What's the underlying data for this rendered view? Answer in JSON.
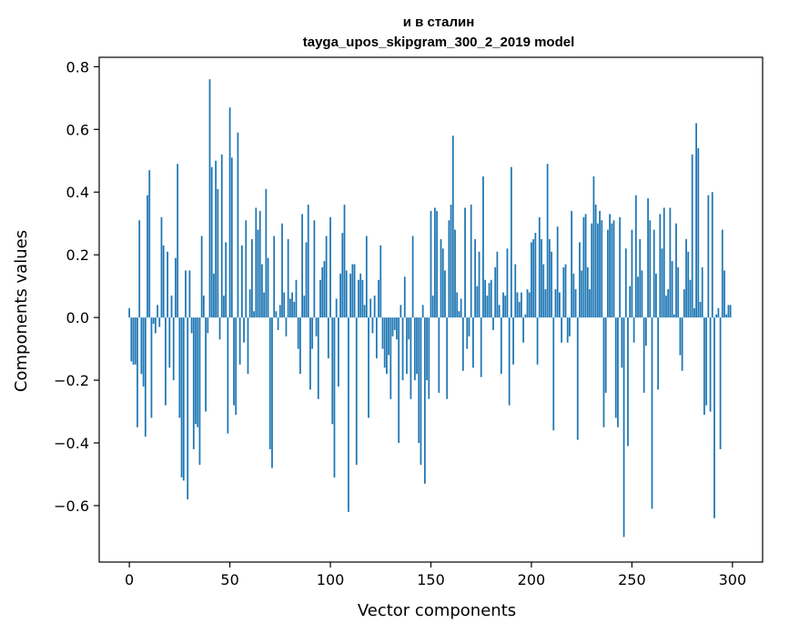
{
  "chart_data": {
    "type": "bar",
    "title": "и в сталин",
    "subtitle": "tayga_upos_skipgram_300_2_2019 model",
    "xlabel": "Vector components",
    "ylabel": "Components values",
    "xlim": [
      -15,
      315
    ],
    "ylim": [
      -0.78,
      0.83
    ],
    "x_ticks": [
      0,
      50,
      100,
      150,
      200,
      250,
      300
    ],
    "x_tick_labels": [
      "0",
      "50",
      "100",
      "150",
      "200",
      "250",
      "300"
    ],
    "y_ticks": [
      -0.6,
      -0.4,
      -0.2,
      0.0,
      0.2,
      0.4,
      0.6,
      0.8
    ],
    "y_tick_labels": [
      "−0.6",
      "−0.4",
      "−0.2",
      "0.0",
      "0.2",
      "0.4",
      "0.6",
      "0.8"
    ],
    "bar_color": "#1f77b4",
    "grid": false,
    "x": "0..299",
    "values": [
      0.03,
      -0.14,
      -0.15,
      -0.15,
      -0.35,
      0.31,
      -0.18,
      -0.22,
      -0.38,
      0.39,
      0.47,
      -0.32,
      -0.02,
      -0.05,
      0.04,
      -0.03,
      0.32,
      0.23,
      -0.28,
      0.21,
      -0.16,
      0.07,
      -0.2,
      0.19,
      0.49,
      -0.32,
      -0.51,
      -0.52,
      0.15,
      -0.58,
      0.15,
      -0.05,
      -0.42,
      -0.34,
      -0.35,
      -0.47,
      0.26,
      0.07,
      -0.3,
      -0.05,
      0.76,
      0.48,
      0.14,
      0.5,
      0.41,
      -0.07,
      0.52,
      0.07,
      0.24,
      -0.37,
      0.67,
      0.51,
      -0.28,
      -0.31,
      0.59,
      -0.15,
      0.23,
      -0.08,
      0.31,
      -0.18,
      0.09,
      0.25,
      0.02,
      0.35,
      0.28,
      0.34,
      0.17,
      0.08,
      0.41,
      0.19,
      -0.42,
      -0.48,
      0.26,
      0.02,
      -0.04,
      0.04,
      0.3,
      0.08,
      -0.06,
      0.25,
      0.06,
      0.08,
      0.05,
      0.12,
      -0.1,
      -0.18,
      0.33,
      0.07,
      0.24,
      0.36,
      -0.23,
      -0.1,
      0.31,
      -0.06,
      -0.26,
      0.12,
      0.16,
      0.18,
      0.26,
      -0.13,
      0.32,
      -0.34,
      -0.51,
      0.06,
      -0.22,
      0.14,
      0.27,
      0.36,
      0.15,
      -0.62,
      0.14,
      0.17,
      0.17,
      -0.47,
      0.12,
      0.14,
      0.12,
      0.04,
      0.26,
      -0.32,
      0.06,
      -0.05,
      0.07,
      -0.13,
      0.12,
      0.23,
      -0.1,
      -0.16,
      -0.18,
      -0.12,
      -0.26,
      -0.06,
      -0.04,
      -0.07,
      -0.4,
      0.04,
      -0.2,
      0.13,
      -0.18,
      -0.07,
      -0.26,
      0.26,
      -0.2,
      -0.18,
      -0.4,
      -0.47,
      0.04,
      -0.53,
      -0.2,
      -0.26,
      0.34,
      0.07,
      0.35,
      0.34,
      -0.24,
      0.25,
      0.22,
      0.15,
      -0.26,
      0.31,
      0.36,
      0.58,
      0.28,
      0.08,
      0.02,
      0.06,
      -0.17,
      0.35,
      -0.1,
      -0.06,
      0.36,
      -0.16,
      0.25,
      0.1,
      0.21,
      -0.19,
      0.45,
      0.12,
      0.07,
      0.11,
      0.12,
      -0.04,
      0.16,
      0.21,
      0.04,
      -0.18,
      0.08,
      0.07,
      0.22,
      -0.28,
      0.48,
      -0.15,
      0.17,
      0.08,
      0.05,
      0.08,
      -0.08,
      0.01,
      0.09,
      0.08,
      0.24,
      0.25,
      0.27,
      -0.15,
      0.32,
      0.25,
      0.17,
      0.09,
      0.49,
      0.25,
      0.21,
      -0.36,
      0.09,
      0.29,
      0.08,
      -0.08,
      0.16,
      0.17,
      -0.08,
      -0.06,
      0.34,
      0.14,
      0.09,
      -0.39,
      0.24,
      0.15,
      0.32,
      0.33,
      0.16,
      0.09,
      0.3,
      0.45,
      0.36,
      0.3,
      0.34,
      0.31,
      -0.35,
      -0.24,
      0.28,
      0.33,
      0.3,
      0.31,
      -0.32,
      -0.35,
      0.32,
      -0.16,
      -0.7,
      0.22,
      -0.41,
      0.1,
      0.28,
      -0.08,
      0.39,
      0.13,
      0.25,
      0.15,
      -0.24,
      -0.09,
      0.38,
      0.31,
      -0.61,
      0.28,
      0.14,
      -0.23,
      0.33,
      0.22,
      0.35,
      0.07,
      0.09,
      0.35,
      0.18,
      0.01,
      0.3,
      0.16,
      -0.12,
      -0.17,
      0.09,
      0.25,
      0.21,
      0.12,
      0.52,
      0.03,
      0.62,
      0.54,
      0.05,
      0.16,
      -0.31,
      -0.28,
      0.39,
      -0.3,
      0.4,
      -0.64,
      0.01,
      0.03,
      -0.42,
      0.28,
      0.15,
      0.01,
      0.04,
      0.04
    ]
  }
}
